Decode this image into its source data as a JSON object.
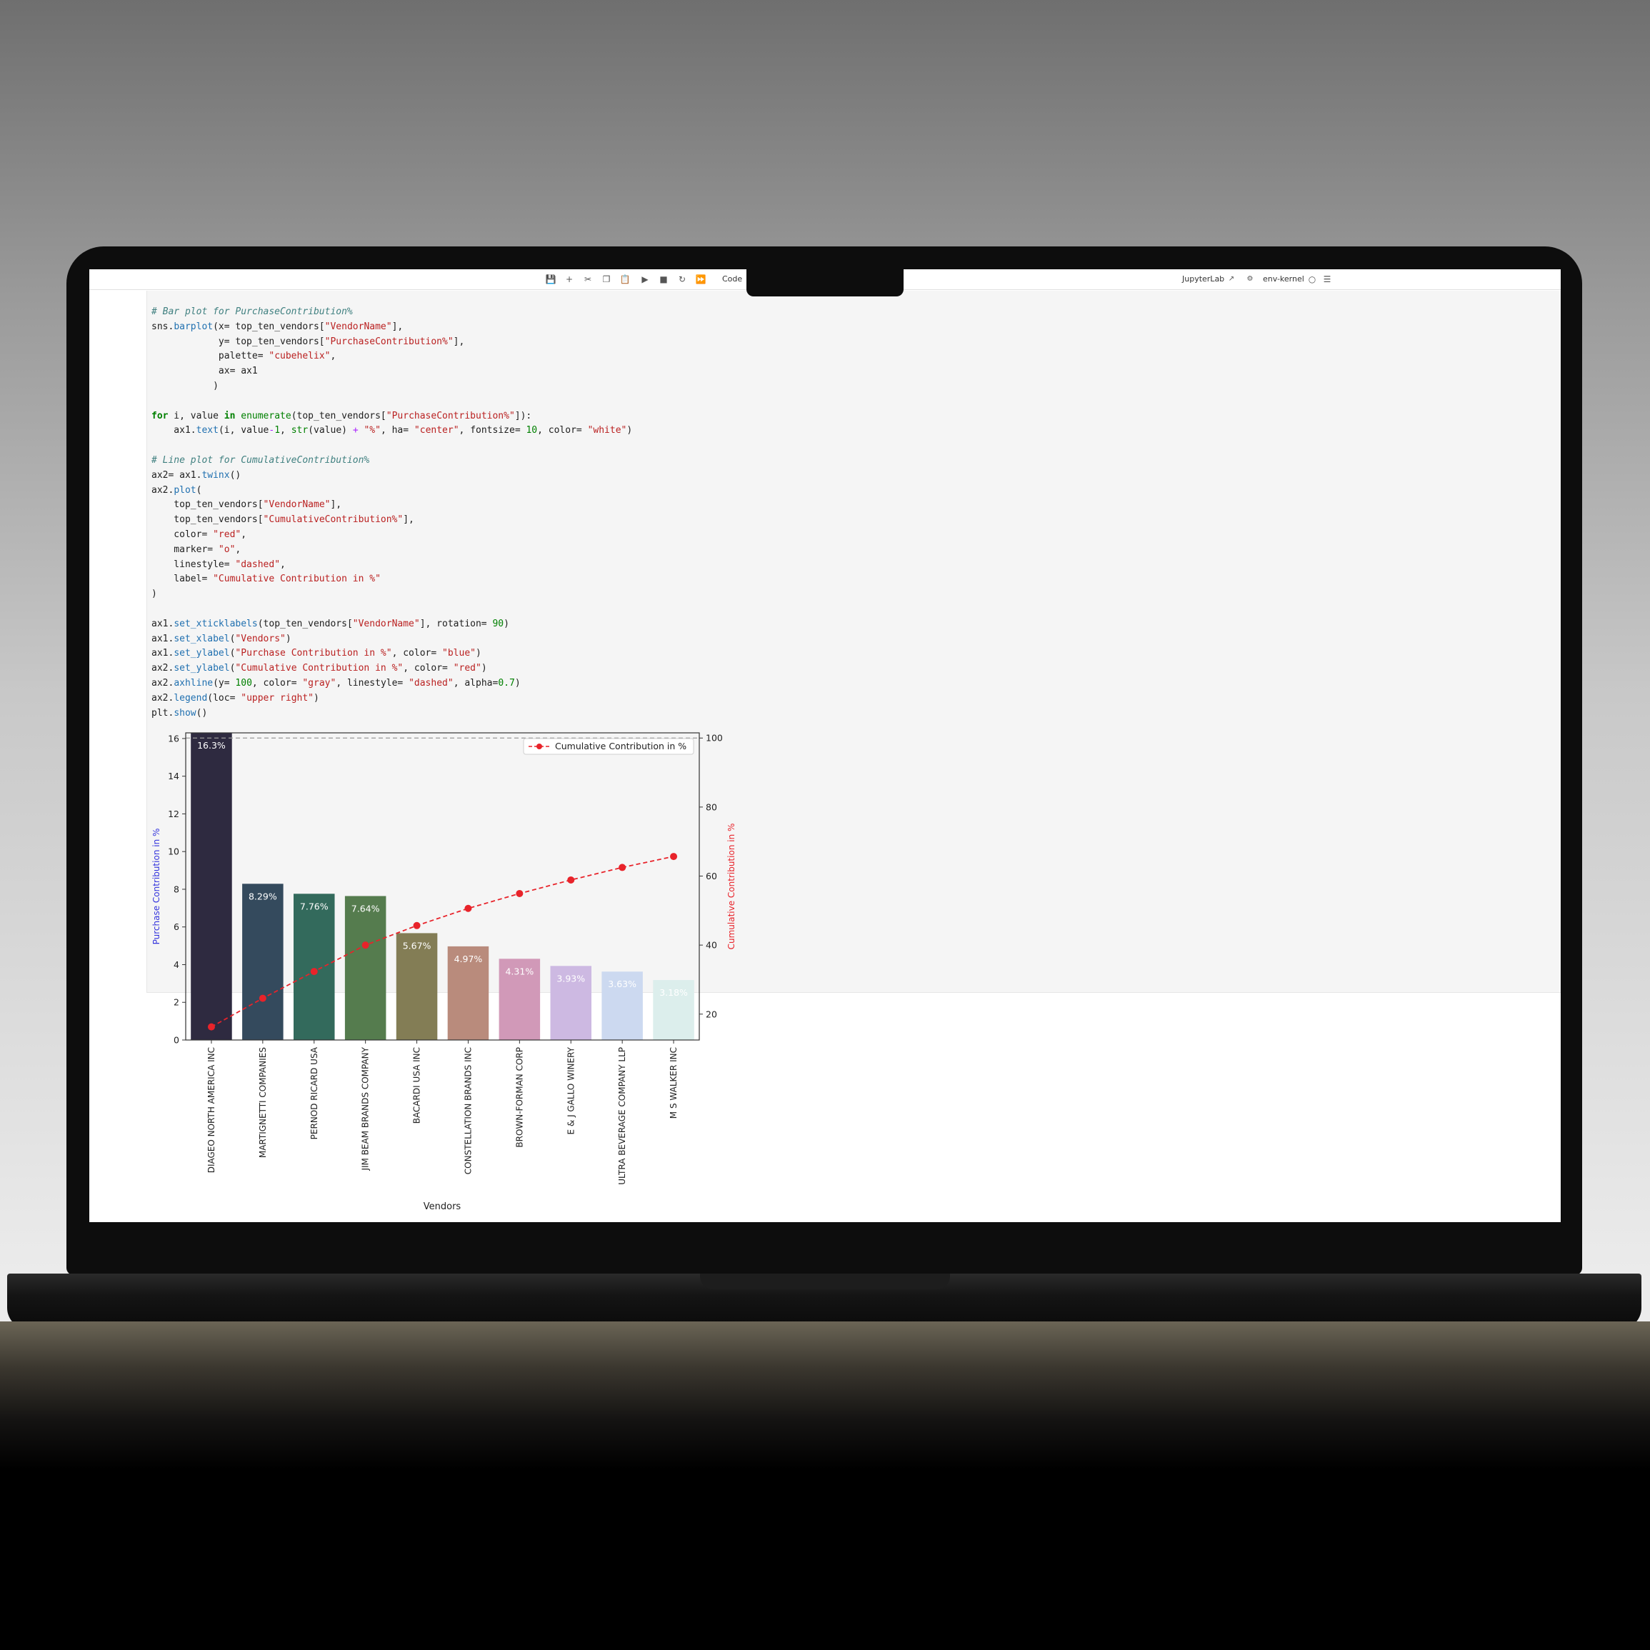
{
  "toolbar": {
    "cell_type": "Code",
    "app_link": "JupyterLab",
    "kernel_name": "env-kernel"
  },
  "code_lines": [
    [
      {
        "t": "# Bar plot for PurchaseContribution%",
        "c": "cm"
      }
    ],
    [
      {
        "t": "sns."
      },
      {
        "t": "barplot",
        "c": "fn"
      },
      {
        "t": "(x= top_ten_vendors["
      },
      {
        "t": "\"VendorName\"",
        "c": "st"
      },
      {
        "t": "],"
      }
    ],
    [
      {
        "t": "            y= top_ten_vendors["
      },
      {
        "t": "\"PurchaseContribution%\"",
        "c": "st"
      },
      {
        "t": "],"
      }
    ],
    [
      {
        "t": "            palette= "
      },
      {
        "t": "\"cubehelix\"",
        "c": "st"
      },
      {
        "t": ","
      }
    ],
    [
      {
        "t": "            ax= ax1"
      }
    ],
    [
      {
        "t": "           )"
      }
    ],
    [
      {
        "t": ""
      }
    ],
    [
      {
        "t": "for",
        "c": "kw"
      },
      {
        "t": " i, value "
      },
      {
        "t": "in",
        "c": "kw"
      },
      {
        "t": " "
      },
      {
        "t": "enumerate",
        "c": "nu"
      },
      {
        "t": "(top_ten_vendors["
      },
      {
        "t": "\"PurchaseContribution%\"",
        "c": "st"
      },
      {
        "t": "]):"
      }
    ],
    [
      {
        "t": "    ax1."
      },
      {
        "t": "text",
        "c": "fn"
      },
      {
        "t": "(i, value"
      },
      {
        "t": "-",
        "c": "op"
      },
      {
        "t": "1",
        "c": "nu"
      },
      {
        "t": ", "
      },
      {
        "t": "str",
        "c": "nu"
      },
      {
        "t": "(value) "
      },
      {
        "t": "+",
        "c": "op"
      },
      {
        "t": " "
      },
      {
        "t": "\"%\"",
        "c": "st"
      },
      {
        "t": ", ha= "
      },
      {
        "t": "\"center\"",
        "c": "st"
      },
      {
        "t": ", fontsize= "
      },
      {
        "t": "10",
        "c": "nu"
      },
      {
        "t": ", color= "
      },
      {
        "t": "\"white\"",
        "c": "st"
      },
      {
        "t": ")"
      }
    ],
    [
      {
        "t": ""
      }
    ],
    [
      {
        "t": "# Line plot for CumulativeContribution%",
        "c": "cm"
      }
    ],
    [
      {
        "t": "ax2= ax1."
      },
      {
        "t": "twinx",
        "c": "fn"
      },
      {
        "t": "()"
      }
    ],
    [
      {
        "t": "ax2."
      },
      {
        "t": "plot",
        "c": "fn"
      },
      {
        "t": "("
      }
    ],
    [
      {
        "t": "    top_ten_vendors["
      },
      {
        "t": "\"VendorName\"",
        "c": "st"
      },
      {
        "t": "],"
      }
    ],
    [
      {
        "t": "    top_ten_vendors["
      },
      {
        "t": "\"CumulativeContribution%\"",
        "c": "st"
      },
      {
        "t": "],"
      }
    ],
    [
      {
        "t": "    color= "
      },
      {
        "t": "\"red\"",
        "c": "st"
      },
      {
        "t": ","
      }
    ],
    [
      {
        "t": "    marker= "
      },
      {
        "t": "\"o\"",
        "c": "st"
      },
      {
        "t": ","
      }
    ],
    [
      {
        "t": "    linestyle= "
      },
      {
        "t": "\"dashed\"",
        "c": "st"
      },
      {
        "t": ","
      }
    ],
    [
      {
        "t": "    label= "
      },
      {
        "t": "\"Cumulative Contribution in %\"",
        "c": "st"
      }
    ],
    [
      {
        "t": ")"
      }
    ],
    [
      {
        "t": ""
      }
    ],
    [
      {
        "t": "ax1."
      },
      {
        "t": "set_xticklabels",
        "c": "fn"
      },
      {
        "t": "(top_ten_vendors["
      },
      {
        "t": "\"VendorName\"",
        "c": "st"
      },
      {
        "t": "], rotation= "
      },
      {
        "t": "90",
        "c": "nu"
      },
      {
        "t": ")"
      }
    ],
    [
      {
        "t": "ax1."
      },
      {
        "t": "set_xlabel",
        "c": "fn"
      },
      {
        "t": "("
      },
      {
        "t": "\"Vendors\"",
        "c": "st"
      },
      {
        "t": ")"
      }
    ],
    [
      {
        "t": "ax1."
      },
      {
        "t": "set_ylabel",
        "c": "fn"
      },
      {
        "t": "("
      },
      {
        "t": "\"Purchase Contribution in %\"",
        "c": "st"
      },
      {
        "t": ", color= "
      },
      {
        "t": "\"blue\"",
        "c": "st"
      },
      {
        "t": ")"
      }
    ],
    [
      {
        "t": "ax2."
      },
      {
        "t": "set_ylabel",
        "c": "fn"
      },
      {
        "t": "("
      },
      {
        "t": "\"Cumulative Contribution in %\"",
        "c": "st"
      },
      {
        "t": ", color= "
      },
      {
        "t": "\"red\"",
        "c": "st"
      },
      {
        "t": ")"
      }
    ],
    [
      {
        "t": "ax2."
      },
      {
        "t": "axhline",
        "c": "fn"
      },
      {
        "t": "(y= "
      },
      {
        "t": "100",
        "c": "nu"
      },
      {
        "t": ", color= "
      },
      {
        "t": "\"gray\"",
        "c": "st"
      },
      {
        "t": ", linestyle= "
      },
      {
        "t": "\"dashed\"",
        "c": "st"
      },
      {
        "t": ", alpha="
      },
      {
        "t": "0.7",
        "c": "nu"
      },
      {
        "t": ")"
      }
    ],
    [
      {
        "t": "ax2."
      },
      {
        "t": "legend",
        "c": "fn"
      },
      {
        "t": "(loc= "
      },
      {
        "t": "\"upper right\"",
        "c": "st"
      },
      {
        "t": ")"
      }
    ],
    [
      {
        "t": "plt."
      },
      {
        "t": "show",
        "c": "fn"
      },
      {
        "t": "()"
      }
    ]
  ],
  "chart_data": {
    "type": "bar",
    "categories": [
      "DIAGEO NORTH AMERICA INC",
      "MARTIGNETTI COMPANIES",
      "PERNOD RICARD USA",
      "JIM BEAM BRANDS COMPANY",
      "BACARDI USA INC",
      "CONSTELLATION BRANDS INC",
      "BROWN-FORMAN CORP",
      "E & J GALLO WINERY",
      "ULTRA BEVERAGE COMPANY LLP",
      "M S WALKER INC"
    ],
    "values": [
      16.3,
      8.29,
      7.76,
      7.64,
      5.67,
      4.97,
      4.31,
      3.93,
      3.63,
      3.18
    ],
    "bar_labels": [
      "16.3%",
      "8.29%",
      "7.76%",
      "7.64%",
      "5.67%",
      "4.97%",
      "4.31%",
      "3.93%",
      "3.63%",
      "3.18%"
    ],
    "bar_colors": [
      "#2e2a40",
      "#344a5d",
      "#336a5c",
      "#557c4e",
      "#837d55",
      "#b98b7c",
      "#d199b8",
      "#cdb9e2",
      "#ccd9f0",
      "#dceeec"
    ],
    "line_series": {
      "name": "Cumulative Contribution in %",
      "values": [
        16.3,
        24.59,
        32.35,
        39.99,
        45.66,
        50.63,
        54.94,
        58.87,
        62.5,
        65.68
      ],
      "color": "#e8232a"
    },
    "xlabel": "Vendors",
    "ylabel": "Purchase Contribution in %",
    "ylabel_color": "#3333dd",
    "y2label": "Cumulative Contribution in %",
    "y2label_color": "#e8232a",
    "ylim": [
      0,
      16.3
    ],
    "y2lim": [
      12.5,
      101.5
    ],
    "yticks": [
      0,
      2,
      4,
      6,
      8,
      10,
      12,
      14,
      16
    ],
    "y2ticks": [
      20,
      40,
      60,
      80,
      100
    ],
    "hline": {
      "y": 100,
      "color": "#999999"
    },
    "legend_position": "upper right"
  }
}
